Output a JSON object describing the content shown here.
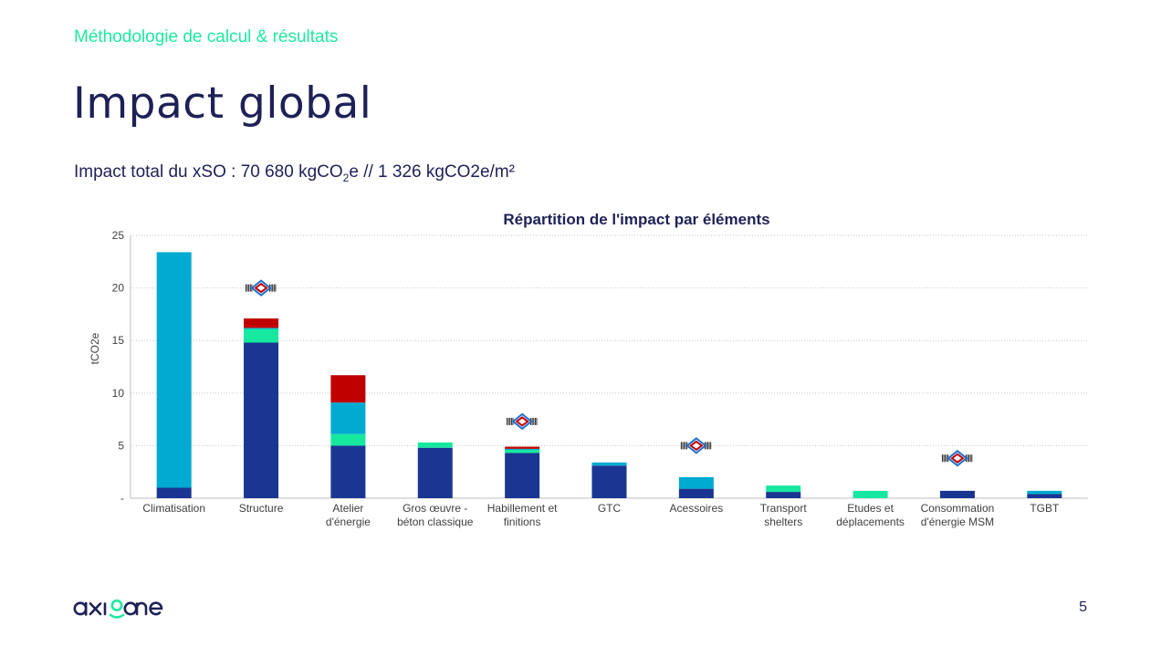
{
  "header": {
    "section": "Méthodologie de calcul & résultats",
    "title": "Impact global",
    "subtitle_prefix": "Impact total du xSO : 70 680 kgCO",
    "subtitle_sub": "2",
    "subtitle_suffix": "e // 1 326 kgCO2e/m²"
  },
  "footer": {
    "page_number": "5",
    "logo_text": "axione"
  },
  "colors": {
    "dark_blue": "#1a3692",
    "light_blue": "#00aad0",
    "green": "#16e8a0",
    "red": "#c00000",
    "title": "#1e2157",
    "accent": "#1de9a0"
  },
  "chart_data": {
    "type": "bar",
    "stacked": true,
    "title": "Répartition de l'impact par éléments",
    "ylabel": "tCO2e",
    "xlabel": "",
    "ylim": [
      0,
      25
    ],
    "yticks": [
      {
        "value": 0,
        "label": "-"
      },
      {
        "value": 5,
        "label": "5"
      },
      {
        "value": 10,
        "label": "10"
      },
      {
        "value": 15,
        "label": "15"
      },
      {
        "value": 20,
        "label": "20"
      },
      {
        "value": 25,
        "label": "25"
      }
    ],
    "grid": true,
    "legend": "none",
    "categories": [
      [
        "Climatisation"
      ],
      [
        "Structure"
      ],
      [
        "Atelier",
        "d'énergie"
      ],
      [
        "Gros œuvre -",
        "béton classique"
      ],
      [
        "Habillement et",
        "finitions"
      ],
      [
        "GTC"
      ],
      [
        "Acessoires"
      ],
      [
        "Transport",
        "shelters"
      ],
      [
        "Etudes et",
        "déplacements"
      ],
      [
        "Consommation",
        "d'énergie MSM"
      ],
      [
        "TGBT"
      ]
    ],
    "series": [
      {
        "color": "#1a3692",
        "values": [
          1.0,
          14.8,
          5.0,
          4.8,
          4.3,
          3.1,
          0.9,
          0.6,
          0.0,
          0.7,
          0.4
        ]
      },
      {
        "color": "#16e8a0",
        "values": [
          0.0,
          1.3,
          1.1,
          0.5,
          0.3,
          0.0,
          0.0,
          0.6,
          0.7,
          0.0,
          0.0
        ]
      },
      {
        "color": "#00aad0",
        "values": [
          22.4,
          0.1,
          3.0,
          0.0,
          0.1,
          0.3,
          1.1,
          0.0,
          0.0,
          0.0,
          0.3
        ]
      },
      {
        "color": "#c00000",
        "values": [
          0.0,
          0.9,
          2.6,
          0.0,
          0.2,
          0.0,
          0.0,
          0.0,
          0.0,
          0.0,
          0.0
        ]
      }
    ],
    "markers": [
      {
        "category_index": 1,
        "y": 20.0
      },
      {
        "category_index": 4,
        "y": 7.3
      },
      {
        "category_index": 6,
        "y": 5.0
      },
      {
        "category_index": 9,
        "y": 3.8
      }
    ]
  }
}
